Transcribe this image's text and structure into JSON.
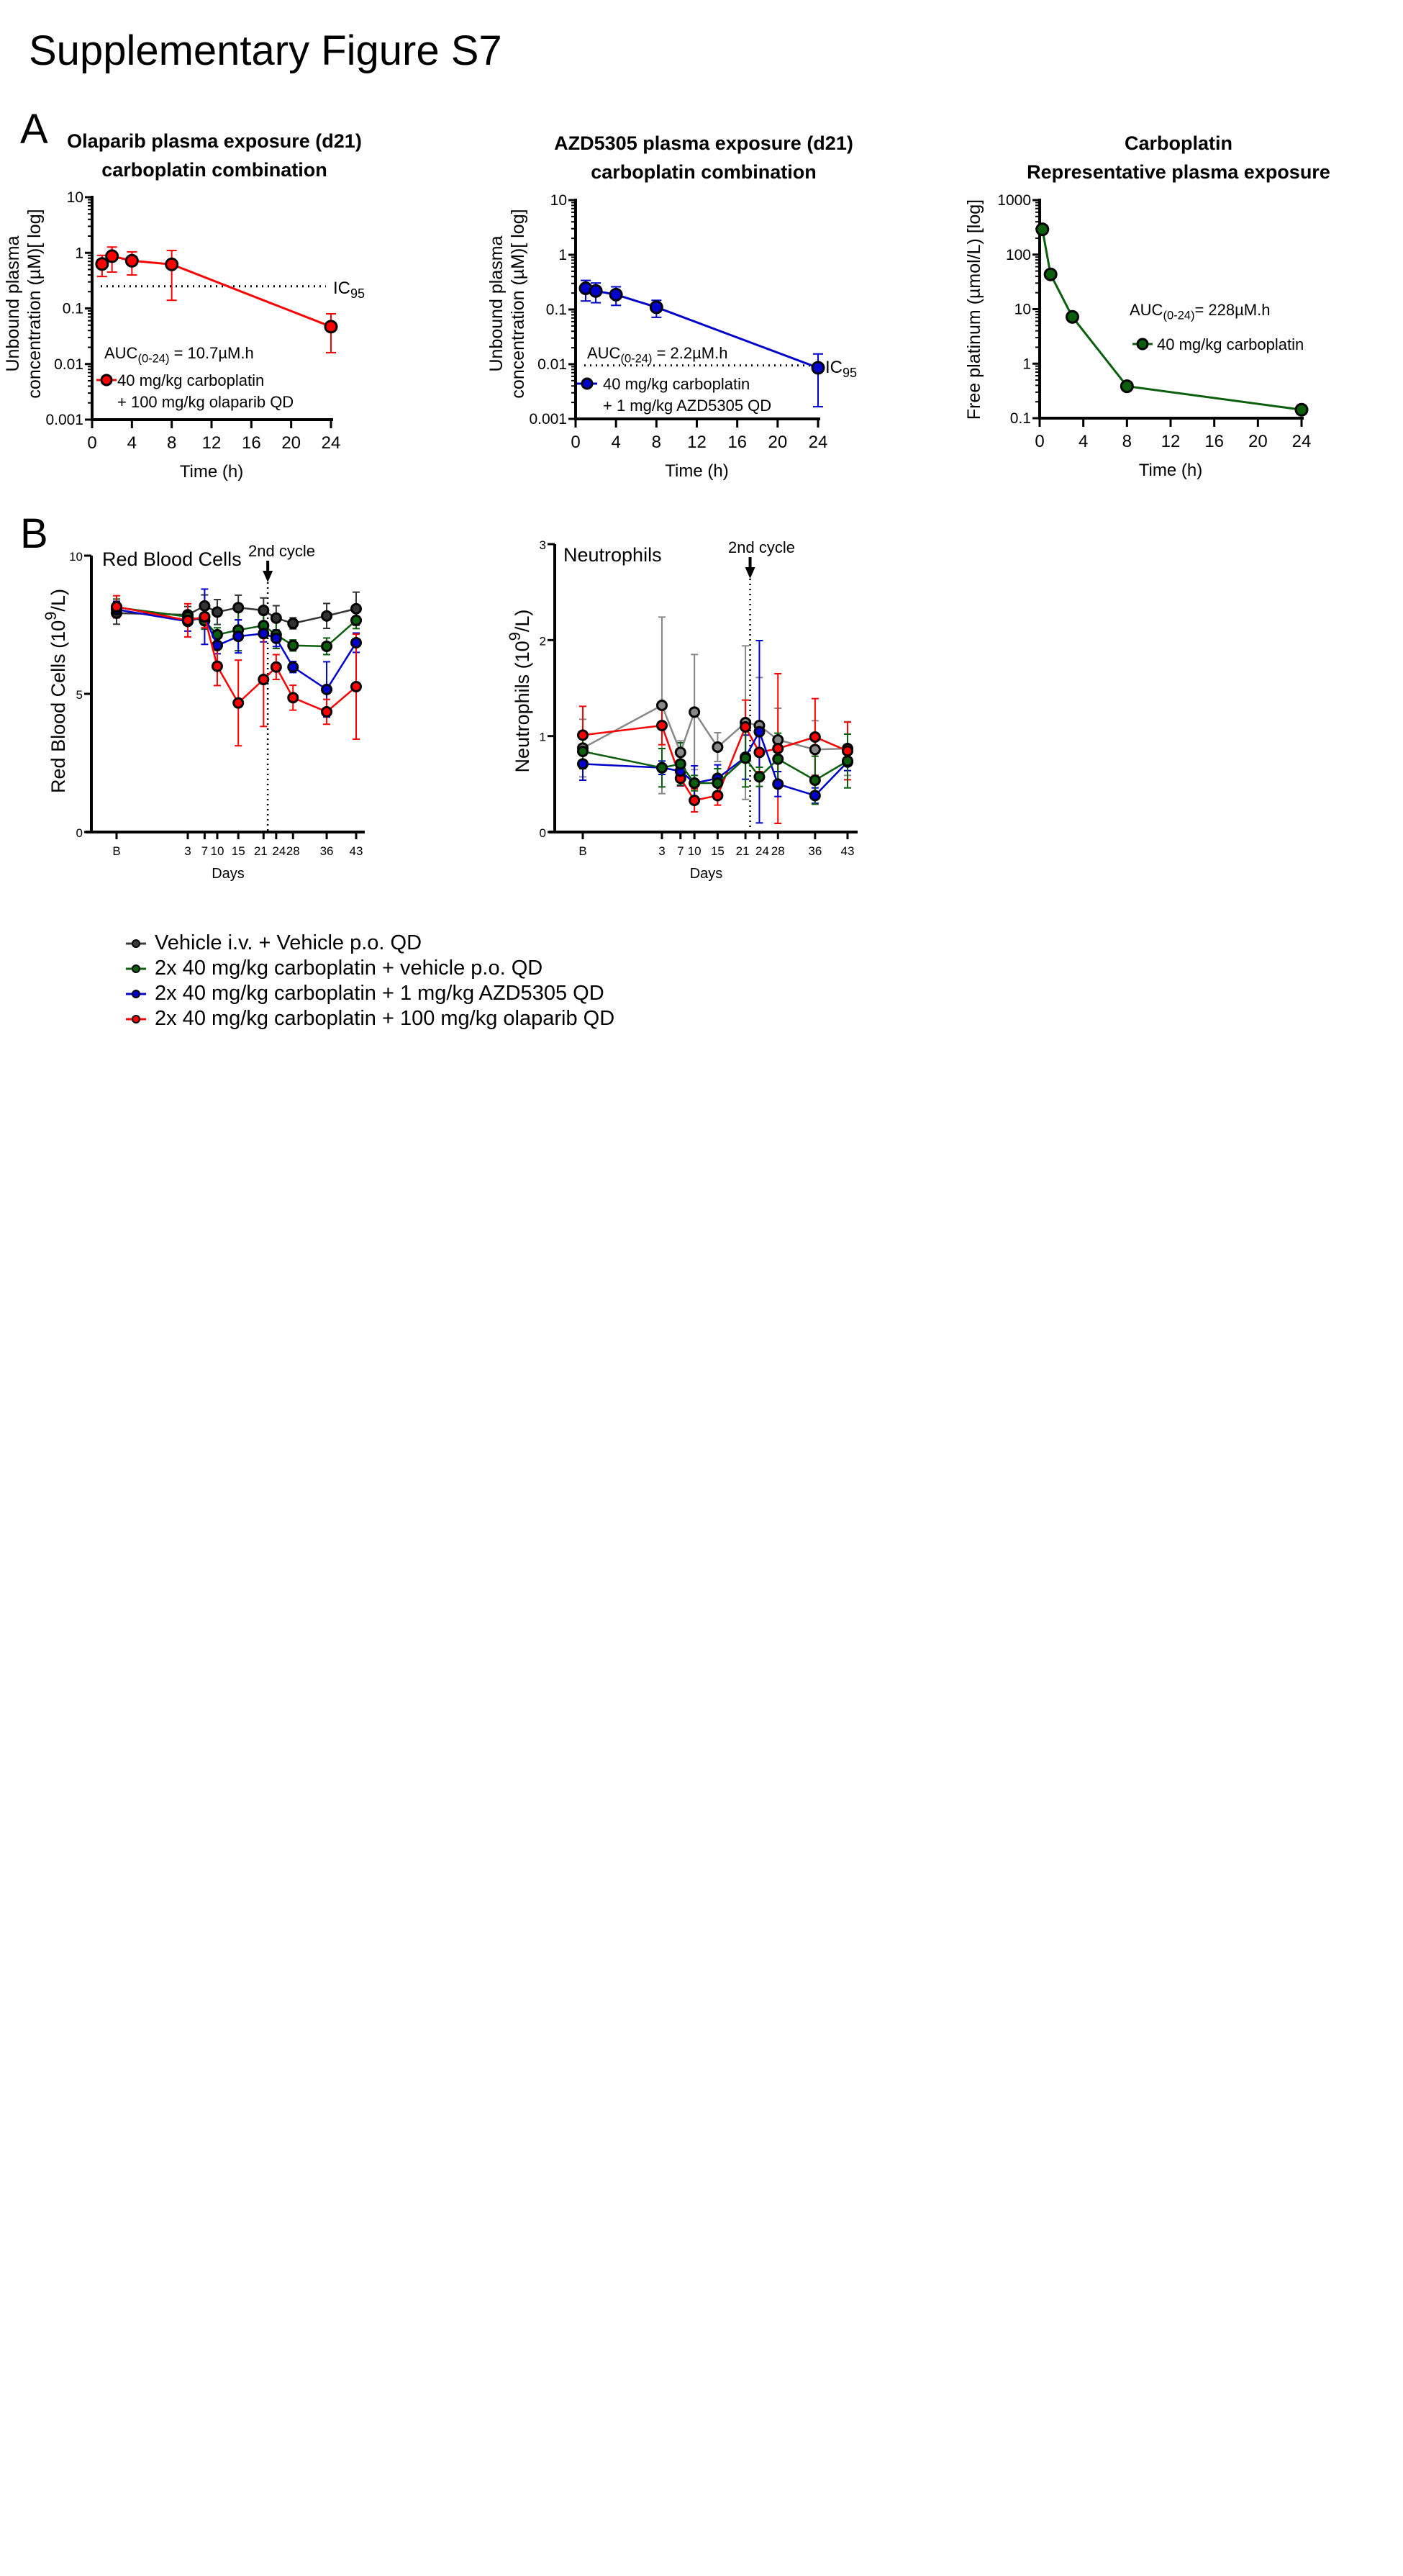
{
  "figure_title": "Supplementary Figure S7",
  "panel_labels": {
    "a": "A",
    "b": "B"
  },
  "colors": {
    "red": "#ff0000",
    "blue": "#0000cc",
    "green": "#0b5e0b",
    "black": "#333333",
    "grey": "#888888"
  },
  "legend_b": [
    {
      "label": "Vehicle i.v. + Vehicle p.o. QD",
      "color": "#3a3a3a"
    },
    {
      "label": "2x 40 mg/kg carboplatin + vehicle p.o. QD",
      "color": "#0b5e0b"
    },
    {
      "label": "2x 40 mg/kg carboplatin + 1 mg/kg AZD5305 QD",
      "color": "#0000cc"
    },
    {
      "label": "2x 40 mg/kg carboplatin + 100 mg/kg olaparib QD",
      "color": "#ff0000"
    }
  ],
  "chart_data": [
    {
      "id": "olaparib",
      "type": "line",
      "title": [
        "Olaparib plasma exposure (d21)",
        "carboplatin combination"
      ],
      "xlabel": "Time (h)",
      "ylabel": [
        "Unbound plasma",
        "concentration (µM)[ log]"
      ],
      "yscale": "log",
      "ylim": [
        0.001,
        10
      ],
      "xlim": [
        0,
        24
      ],
      "xticks": [
        0,
        4,
        8,
        12,
        16,
        20,
        24
      ],
      "yticks": [
        0.001,
        0.01,
        0.1,
        1,
        10
      ],
      "ytick_labels": [
        "0.001",
        "0.01",
        "0.1",
        "1",
        "10"
      ],
      "annotation": {
        "auc_prefix": "AUC",
        "auc_sub": "(0-24)",
        "auc_value": " = 10.7µM.h"
      },
      "reference_line": {
        "y": 0.25,
        "label": "IC",
        "label_sub": "95"
      },
      "series": [
        {
          "name": [
            "40 mg/kg carboplatin",
            "+ 100 mg/kg olaparib QD"
          ],
          "color": "#ff0000",
          "x": [
            1,
            2,
            4,
            8,
            24
          ],
          "y": [
            0.63,
            0.87,
            0.72,
            0.62,
            0.047
          ],
          "err_low": [
            0.375,
            0.45,
            0.4,
            0.14,
            0.016
          ],
          "err_high": [
            0.9,
            1.27,
            1.04,
            1.1,
            0.08
          ]
        }
      ]
    },
    {
      "id": "azd5305",
      "type": "line",
      "title": [
        "AZD5305 plasma exposure (d21)",
        "carboplatin combination"
      ],
      "xlabel": "Time (h)",
      "ylabel": [
        "Unbound plasma",
        "concentration (µM)[ log]"
      ],
      "yscale": "log",
      "ylim": [
        0.001,
        10
      ],
      "xlim": [
        0,
        24
      ],
      "xticks": [
        0,
        4,
        8,
        12,
        16,
        20,
        24
      ],
      "yticks": [
        0.001,
        0.01,
        0.1,
        1,
        10
      ],
      "ytick_labels": [
        "0.001",
        "0.01",
        "0.1",
        "1",
        "10"
      ],
      "annotation": {
        "auc_prefix": "AUC",
        "auc_sub": "(0-24)",
        "auc_value": " = 2.2µM.h"
      },
      "reference_line": {
        "y": 0.0095,
        "label": "IC",
        "label_sub": "95"
      },
      "series": [
        {
          "name": [
            "40 mg/kg carboplatin",
            "+ 1 mg/kg AZD5305 QD"
          ],
          "color": "#0000cc",
          "x": [
            1,
            2,
            4,
            8,
            24
          ],
          "y": [
            0.244,
            0.218,
            0.187,
            0.11,
            0.0086
          ],
          "err_low": [
            0.143,
            0.133,
            0.119,
            0.072,
            0.00167
          ],
          "err_high": [
            0.34,
            0.305,
            0.26,
            0.147,
            0.0154
          ]
        }
      ]
    },
    {
      "id": "carboplatin",
      "type": "line",
      "title": [
        "Carboplatin",
        "Representative plasma exposure"
      ],
      "xlabel": "Time (h)",
      "ylabel": [
        "Free platinum (µmol/L) [log]"
      ],
      "yscale": "log",
      "ylim": [
        0.1,
        1000
      ],
      "xlim": [
        0,
        24
      ],
      "xticks": [
        0,
        4,
        8,
        12,
        16,
        20,
        24
      ],
      "yticks": [
        0.1,
        1,
        10,
        100,
        1000
      ],
      "ytick_labels": [
        "0.1",
        "1",
        "10",
        "100",
        "1000"
      ],
      "annotation": {
        "auc_prefix": "AUC",
        "auc_sub": "(0-24)",
        "auc_value": "= 228µM.h"
      },
      "series": [
        {
          "name": [
            "40 mg/kg carboplatin"
          ],
          "color": "#0b5e0b",
          "x": [
            0.25,
            1,
            3,
            8,
            24
          ],
          "y": [
            291,
            43.4,
            7.2,
            0.385,
            0.143
          ]
        }
      ]
    },
    {
      "id": "rbc",
      "type": "line",
      "title": [
        "Red Blood Cells"
      ],
      "xlabel": "Days",
      "ylabel": [
        "Red Blood Cells (10",
        "9",
        "/L)"
      ],
      "ylim": [
        0,
        10
      ],
      "yticks": [
        0,
        5,
        10
      ],
      "ytick_labels": [
        "0",
        "5",
        "10"
      ],
      "categories": [
        "B",
        "3",
        "7",
        "10",
        "15",
        "21",
        "24",
        "28",
        "36",
        "43"
      ],
      "annotation": {
        "label": "2nd cycle",
        "day": 22
      },
      "series": [
        {
          "group": 0,
          "color": "#333333",
          "y": [
            7.92,
            7.86,
            8.18,
            7.96,
            8.12,
            8.02,
            7.74,
            7.55,
            7.82,
            8.08
          ],
          "err": [
            0.4,
            0.3,
            0.4,
            0.45,
            0.45,
            0.45,
            0.45,
            0.2,
            0.45,
            0.6
          ]
        },
        {
          "group": 1,
          "color": "#0b5e0b",
          "y": [
            8.13,
            7.79,
            7.64,
            7.14,
            7.31,
            7.47,
            7.14,
            6.75,
            6.72,
            7.66
          ],
          "err": [
            0.3,
            0.2,
            0.3,
            0.25,
            0.75,
            0.45,
            0.5,
            0.2,
            0.3,
            0.3
          ]
        },
        {
          "group": 2,
          "color": "#0000cc",
          "y": [
            8.05,
            7.62,
            7.79,
            6.75,
            7.08,
            7.18,
            7.01,
            5.97,
            5.16,
            6.85
          ],
          "err": [
            0.3,
            0.35,
            1.0,
            0.3,
            0.6,
            0.3,
            0.3,
            0.2,
            1.0,
            0.35
          ]
        },
        {
          "group": 3,
          "color": "#ff0000",
          "y": [
            8.15,
            7.66,
            7.79,
            6.0,
            4.67,
            5.52,
            5.97,
            4.86,
            4.35,
            5.26
          ],
          "err": [
            0.4,
            0.6,
            0.4,
            0.7,
            1.55,
            1.7,
            0.45,
            0.45,
            0.45,
            1.9
          ]
        }
      ]
    },
    {
      "id": "neutrophils",
      "type": "line",
      "title": [
        "Neutrophils"
      ],
      "xlabel": "Days",
      "ylabel": [
        "Neutrophils (10",
        "9",
        "/L)"
      ],
      "ylim": [
        0,
        3
      ],
      "yticks": [
        0,
        1,
        2,
        3
      ],
      "ytick_labels": [
        "0",
        "1",
        "2",
        "3"
      ],
      "categories": [
        "B",
        "3",
        "7",
        "10",
        "15",
        "21",
        "24",
        "28",
        "36",
        "43"
      ],
      "annotation": {
        "label": "2nd cycle",
        "day": 22
      },
      "series": [
        {
          "group": 0,
          "color": "#888888",
          "y": [
            0.875,
            1.32,
            0.83,
            1.25,
            0.885,
            1.14,
            1.11,
            0.96,
            0.86,
            0.87
          ],
          "err": [
            0.3,
            0.92,
            0.12,
            0.6,
            0.15,
            0.8,
            0.5,
            0.33,
            0.3,
            0.28
          ]
        },
        {
          "group": 3,
          "color": "#ff0000",
          "y": [
            1.01,
            1.11,
            0.56,
            0.33,
            0.38,
            1.095,
            0.83,
            0.87,
            0.99,
            0.845
          ],
          "err": [
            0.3,
            0.2,
            0.08,
            0.12,
            0.1,
            0.28,
            0.2,
            0.78,
            0.4,
            0.3
          ]
        },
        {
          "group": 2,
          "color": "#0000cc",
          "y": [
            0.71,
            0.67,
            0.635,
            0.51,
            0.56,
            0.78,
            1.045,
            0.5,
            0.38,
            0.73
          ],
          "err": [
            0.17,
            0.07,
            0.15,
            0.18,
            0.14,
            0.23,
            0.95,
            0.13,
            0.08,
            0.09
          ]
        },
        {
          "group": 1,
          "color": "#0b5e0b",
          "y": [
            0.84,
            0.67,
            0.71,
            0.51,
            0.51,
            0.77,
            0.575,
            0.76,
            0.54,
            0.74
          ],
          "err": [
            0.18,
            0.2,
            0.22,
            0.08,
            0.15,
            0.3,
            0.1,
            0.27,
            0.25,
            0.28
          ]
        }
      ]
    }
  ]
}
